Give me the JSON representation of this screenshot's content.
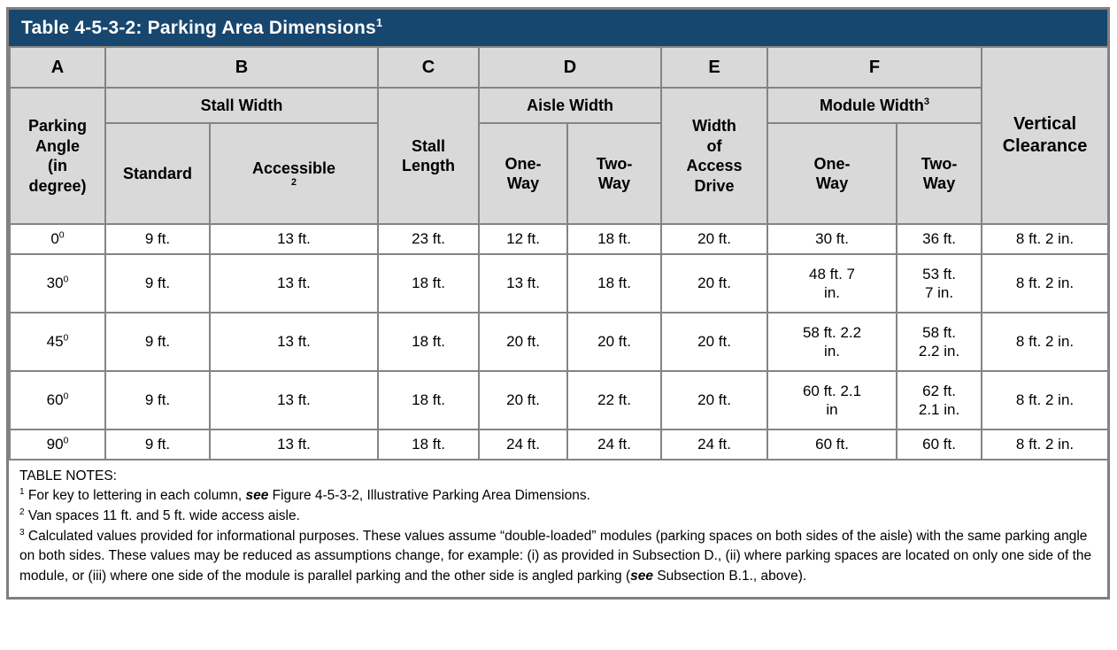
{
  "title": {
    "text": "Table 4-5-3-2: Parking Area Dimensions",
    "sup": "1"
  },
  "colors": {
    "title_bar": "#17466e",
    "header_fill": "#d9d9d9",
    "border": "#848484",
    "outer_border": "#7f7f7f"
  },
  "header": {
    "letters": [
      "A",
      "B",
      "C",
      "D",
      "E",
      "F"
    ],
    "parking_angle": "Parking\nAngle\n(in\ndegree)",
    "stall_width": "Stall Width",
    "standard": "Standard",
    "accessible": "Accessible",
    "accessible_sup": "2",
    "stall_length": "Stall\nLength",
    "aisle_width": "Aisle Width",
    "aisle_one_way": "One-\nWay",
    "aisle_two_way": "Two-\nWay",
    "width_access_drive": "Width\nof\nAccess\nDrive",
    "module_width": "Module Width",
    "module_width_sup": "3",
    "module_one_way": "One-\nWay",
    "module_two_way": "Two-\nWay",
    "vertical_clearance": "Vertical\nClearance"
  },
  "table": {
    "column_keys": [
      "angle",
      "standard",
      "accessible",
      "stall_length",
      "aisle_one_way",
      "aisle_two_way",
      "access_drive",
      "module_one_way",
      "module_two_way",
      "vertical_clearance"
    ],
    "rows": [
      {
        "angle": "0",
        "angle_sup": "0",
        "standard": "9 ft.",
        "accessible": "13 ft.",
        "stall_length": "23 ft.",
        "aisle_one_way": "12 ft.",
        "aisle_two_way": "18 ft.",
        "access_drive": "20 ft.",
        "module_one_way": "30 ft.",
        "module_two_way": "36 ft.",
        "vertical_clearance": "8 ft. 2 in."
      },
      {
        "angle": "30",
        "angle_sup": "0",
        "standard": "9 ft.",
        "accessible": "13 ft.",
        "stall_length": "18 ft.",
        "aisle_one_way": "13 ft.",
        "aisle_two_way": "18 ft.",
        "access_drive": "20 ft.",
        "module_one_way": "48 ft. 7\nin.",
        "module_two_way": "53 ft.\n7 in.",
        "vertical_clearance": "8 ft. 2 in."
      },
      {
        "angle": "45",
        "angle_sup": "0",
        "standard": "9 ft.",
        "accessible": "13 ft.",
        "stall_length": "18 ft.",
        "aisle_one_way": "20 ft.",
        "aisle_two_way": "20 ft.",
        "access_drive": "20 ft.",
        "module_one_way": "58 ft. 2.2\nin.",
        "module_two_way": "58 ft.\n2.2 in.",
        "vertical_clearance": "8 ft. 2 in."
      },
      {
        "angle": "60",
        "angle_sup": "0",
        "standard": "9 ft.",
        "accessible": "13 ft.",
        "stall_length": "18 ft.",
        "aisle_one_way": "20 ft.",
        "aisle_two_way": "22 ft.",
        "access_drive": "20 ft.",
        "module_one_way": "60 ft. 2.1\nin",
        "module_two_way": "62 ft.\n2.1 in.",
        "vertical_clearance": "8 ft. 2 in."
      },
      {
        "angle": "90",
        "angle_sup": "0",
        "standard": "9 ft.",
        "accessible": "13 ft.",
        "stall_length": "18 ft.",
        "aisle_one_way": "24 ft.",
        "aisle_two_way": "24 ft.",
        "access_drive": "24 ft.",
        "module_one_way": "60 ft.",
        "module_two_way": "60 ft.",
        "vertical_clearance": "8 ft. 2 in."
      }
    ]
  },
  "notes": {
    "heading": "TABLE NOTES:",
    "items": [
      {
        "sup": "1",
        "segments": [
          {
            "text": "For key to lettering in each column, "
          },
          {
            "text": "see",
            "bold_italic": true
          },
          {
            "text": " Figure 4-5-3-2, Illustrative Parking Area Dimensions."
          }
        ]
      },
      {
        "sup": "2",
        "segments": [
          {
            "text": "Van spaces 11 ft. and 5 ft. wide access aisle."
          }
        ]
      },
      {
        "sup": "3",
        "segments": [
          {
            "text": "Calculated values provided for informational purposes. These values assume “double-loaded” modules (parking spaces on both sides of the aisle) with the same parking angle on both sides. These values may be reduced as assumptions change, for example: (i) as provided in Subsection D., (ii) where parking spaces are located on only one side of the module, or (iii) where one side of the module is parallel parking and the other side is angled parking ("
          },
          {
            "text": "see",
            "bold_italic": true
          },
          {
            "text": " Subsection B.1., above)."
          }
        ]
      }
    ]
  }
}
